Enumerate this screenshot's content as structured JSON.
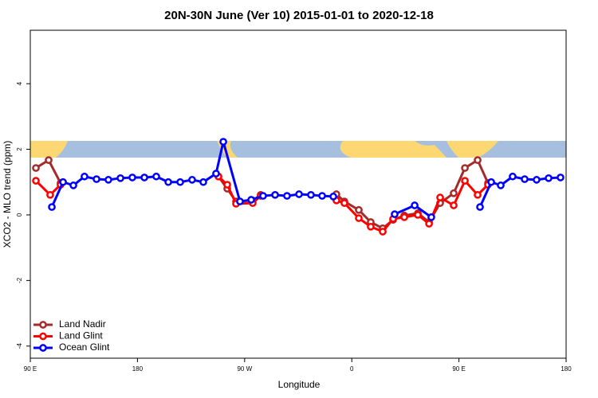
{
  "chart_data": {
    "type": "line",
    "title": "20N-30N June (Ver 10)   2015-01-01 to 2020-12-18",
    "x_label": "Longitude",
    "y_label": "XCO2 - MLO trend (ppm)",
    "xlim": [
      90,
      540
    ],
    "ylim": [
      -4.37,
      5.63
    ],
    "xticks": [
      {
        "value": 90,
        "label": "90 E"
      },
      180,
      {
        "value": 270,
        "label": "90 W"
      },
      {
        "value": 360,
        "label": "0"
      },
      {
        "value": 450,
        "label": "90 E"
      },
      {
        "value": 540,
        "label": "180"
      }
    ],
    "yticks": [
      -4,
      -2,
      0,
      2,
      4
    ],
    "legend": "bottom-left",
    "series": [
      {
        "name": "Land Nadir",
        "color": "#a52a2a",
        "x": [
          94.7,
          105.4,
          115.4,
          null,
          248,
          255.4,
          262.8,
          276.8,
          283.5,
          null,
          347.1,
          353.8,
          365.9,
          375.9,
          386,
          394.7,
          404.1,
          415.5,
          424.9,
          434.2,
          445.6,
          455,
          465.7,
          474.4
        ],
        "values": [
          1.43,
          1.67,
          0.97,
          null,
          1.17,
          0.8,
          0.41,
          0.44,
          0.61,
          null,
          0.63,
          0.41,
          0.15,
          -0.22,
          -0.41,
          -0.15,
          -0.02,
          0.05,
          -0.22,
          0.36,
          0.66,
          1.43,
          1.67,
          0.97
        ]
      },
      {
        "name": "Land Glint",
        "color": "#ff0000",
        "x": [
          94.7,
          106.7,
          115.4,
          null,
          248,
          255.4,
          262.8,
          276.8,
          283.5,
          null,
          347.1,
          353.8,
          365.9,
          375.9,
          386,
          394.7,
          404.1,
          415.5,
          424.9,
          434.2,
          445.6,
          455,
          465.7,
          474.4
        ],
        "values": [
          1.04,
          0.61,
          0.92,
          null,
          1.17,
          0.92,
          0.34,
          0.36,
          0.58,
          null,
          0.44,
          0.36,
          -0.1,
          -0.36,
          -0.51,
          -0.12,
          -0.07,
          0.0,
          -0.27,
          0.53,
          0.29,
          1.04,
          0.61,
          0.92
        ]
      },
      {
        "name": "Ocean Glint",
        "color": "#0000ff",
        "x": [
          108.1,
          117.5,
          126.2,
          135.5,
          145.6,
          155.6,
          165.7,
          175.7,
          185.8,
          195.8,
          205.9,
          215.9,
          225.9,
          235.3,
          246,
          252.1,
          266.1,
          275.5,
          285.5,
          295.6,
          305.6,
          315.7,
          325.7,
          335.1,
          344.5,
          null,
          396,
          412.8,
          426.8,
          null,
          467.7,
          477.1,
          485.1,
          495.1,
          505.2,
          515.2,
          525.3,
          535.3
        ],
        "values": [
          0.24,
          1.0,
          0.9,
          1.17,
          1.09,
          1.07,
          1.12,
          1.14,
          1.14,
          1.17,
          1.0,
          1.0,
          1.07,
          1.0,
          1.26,
          2.23,
          0.41,
          0.46,
          0.58,
          0.61,
          0.58,
          0.63,
          0.61,
          0.58,
          0.56,
          null,
          0.02,
          0.29,
          -0.07,
          null,
          0.24,
          1.0,
          0.9,
          1.17,
          1.09,
          1.07,
          1.12,
          1.14
        ]
      }
    ]
  }
}
